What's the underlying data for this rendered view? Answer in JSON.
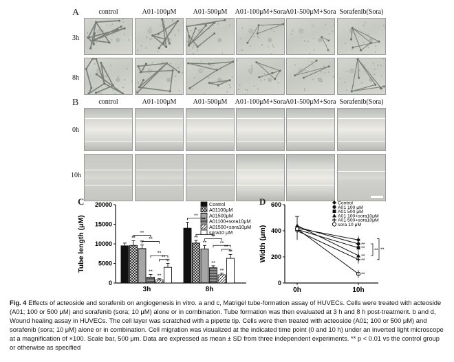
{
  "figure": {
    "panel_a_letter": "A",
    "panel_b_letter": "B",
    "panel_c_letter": "C",
    "panel_d_letter": "D",
    "conditions_ab": [
      "control",
      "A01-100μM",
      "A01-500μM",
      "A01-100μM+Sora",
      "A01-500μM+Sora",
      "Sorafenib(Sora)"
    ],
    "rows_a": [
      "3h",
      "8h"
    ],
    "rows_b": [
      "0h",
      "10h"
    ],
    "caption": {
      "lead": "Fig. 4",
      "text": " Effects of acteoside and sorafenib on angiogenesis in vitro. a and c, Matrigel tube-formation assay of HUVECs. Cells were treated with acteoside (A01; 100 or 500 μM) and sorafenib (sora; 10 μM) alone or in combination. Tube formation was then evaluated at 3 h and 8 h post-treatment. b and d, Wound healing assay in HUVECs. The cell layer was scratched with a pipette tip. Cells were then treated with acteoside (A01; 100 or 500 μM) and sorafenib (sora; 10 μM) alone or in combination. Cell migration was visualized at the indicated time point (0 and 10 h) under an inverted light microscope at a magnification of ×100. Scale bar, 500 μm. Data are expressed as mean ± SD from three independent experiments. ** p < 0.01 vs the control group or otherwise as specified"
    }
  },
  "chart_data": [
    {
      "type": "bar",
      "ylabel": "Tube length (μM)",
      "ylim": [
        0,
        20000
      ],
      "yticks": [
        "0",
        "5000",
        "10000",
        "15000",
        "20000"
      ],
      "categories": [
        "3h",
        "8h"
      ],
      "legend_position": "top-right",
      "series": [
        {
          "name": "Control",
          "values": [
            9500,
            14000
          ],
          "errors": [
            700,
            1500
          ],
          "pattern": "solid",
          "color": "#111111"
        },
        {
          "name": "A01100μM",
          "values": [
            9600,
            10200
          ],
          "errors": [
            1200,
            700
          ],
          "pattern": "crosshatch",
          "color": "#111111"
        },
        {
          "name": "A01500μM",
          "values": [
            8800,
            8700
          ],
          "errors": [
            900,
            900
          ],
          "pattern": "horizontal",
          "color": "#111111"
        },
        {
          "name": "A01100+sora10μM",
          "values": [
            1500,
            3900
          ],
          "errors": [
            700,
            500
          ],
          "pattern": "dense",
          "color": "#111111"
        },
        {
          "name": "A01500+sora10μM",
          "values": [
            800,
            2100
          ],
          "errors": [
            300,
            400
          ],
          "pattern": "diagonal",
          "color": "#111111"
        },
        {
          "name": "sora10 μM",
          "values": [
            4000,
            6300
          ],
          "errors": [
            1000,
            1000
          ],
          "pattern": "hollow",
          "color": "#111111"
        }
      ],
      "significance": "**"
    },
    {
      "type": "line",
      "ylabel": "Width (μm)",
      "ylim": [
        0,
        600
      ],
      "yticks": [
        "0",
        "200",
        "400",
        "600"
      ],
      "x": [
        "0h",
        "10h"
      ],
      "legend_position": "top-right",
      "series": [
        {
          "name": "Control",
          "values": [
            420,
            330
          ],
          "marker": "diamond"
        },
        {
          "name": "A01 100 μM",
          "values": [
            430,
            300
          ],
          "marker": "circle"
        },
        {
          "name": "A01 500 μM",
          "values": [
            410,
            270
          ],
          "marker": "square"
        },
        {
          "name": "A01 100+sora10μM",
          "values": [
            440,
            210
          ],
          "marker": "triangle"
        },
        {
          "name": "A01 500+sora10μM",
          "values": [
            400,
            180
          ],
          "marker": "cross"
        },
        {
          "name": "sora 10 μM",
          "values": [
            415,
            70
          ],
          "marker": "circle-open"
        }
      ],
      "error_at_0h": 90,
      "significance": "**"
    }
  ]
}
